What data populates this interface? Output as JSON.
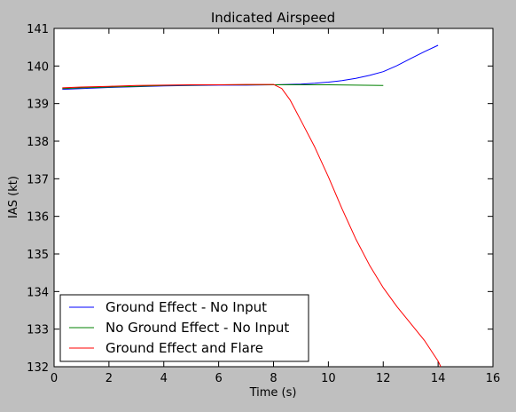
{
  "chart_data": {
    "type": "line",
    "title": "Indicated Airspeed",
    "xlabel": "Time (s)",
    "ylabel": "IAS (kt)",
    "xlim": [
      0,
      16
    ],
    "ylim": [
      132,
      141
    ],
    "xticks": [
      0,
      2,
      4,
      6,
      8,
      10,
      12,
      14,
      16
    ],
    "yticks": [
      132,
      133,
      134,
      135,
      136,
      137,
      138,
      139,
      140,
      141
    ],
    "grid": false,
    "legend_position": "lower-left",
    "series": [
      {
        "name": "Ground Effect - No Input",
        "color": "#0000ff",
        "x": [
          0.3,
          1,
          2,
          3,
          4,
          5,
          6,
          7,
          8,
          8.5,
          9,
          9.5,
          10,
          10.5,
          11,
          11.5,
          12,
          12.5,
          13,
          13.5,
          14
        ],
        "y": [
          139.38,
          139.4,
          139.43,
          139.45,
          139.47,
          139.48,
          139.49,
          139.49,
          139.5,
          139.51,
          139.52,
          139.54,
          139.57,
          139.61,
          139.67,
          139.75,
          139.85,
          140.01,
          140.2,
          140.38,
          140.55
        ]
      },
      {
        "name": "No Ground Effect - No Input",
        "color": "#008000",
        "x": [
          0.3,
          1,
          2,
          3,
          4,
          5,
          6,
          7,
          8,
          9,
          10,
          11,
          12
        ],
        "y": [
          139.4,
          139.42,
          139.44,
          139.46,
          139.48,
          139.49,
          139.5,
          139.5,
          139.5,
          139.5,
          139.5,
          139.49,
          139.48
        ]
      },
      {
        "name": "Ground Effect and Flare",
        "color": "#ff0000",
        "x": [
          0.3,
          1,
          2,
          3,
          4,
          5,
          6,
          7,
          8,
          8.3,
          8.6,
          9,
          9.5,
          10,
          10.5,
          11,
          11.5,
          12,
          12.5,
          13,
          13.5,
          14,
          14.1
        ],
        "y": [
          139.42,
          139.44,
          139.46,
          139.48,
          139.49,
          139.5,
          139.5,
          139.51,
          139.51,
          139.4,
          139.1,
          138.55,
          137.85,
          137.05,
          136.2,
          135.4,
          134.7,
          134.1,
          133.6,
          133.15,
          132.7,
          132.15,
          132.0
        ]
      }
    ]
  }
}
